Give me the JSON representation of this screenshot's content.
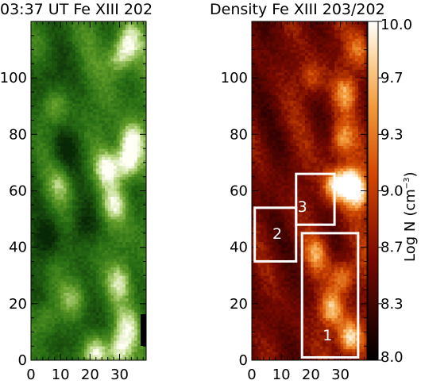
{
  "chart_data": [
    {
      "type": "heatmap",
      "title": "03:37 UT Fe XIII 202",
      "colormap": "green",
      "x_ticks": [
        "0",
        "10",
        "20",
        "30"
      ],
      "y_ticks": [
        "0",
        "20",
        "40",
        "60",
        "80",
        "100"
      ],
      "xlim": [
        0,
        39
      ],
      "ylim": [
        0,
        120
      ],
      "bright_patches": [
        {
          "x": 33,
          "y": 70,
          "level": 0.95
        },
        {
          "x": 34,
          "y": 78,
          "level": 0.85
        },
        {
          "x": 26,
          "y": 68,
          "level": 0.75
        },
        {
          "x": 30,
          "y": 107,
          "level": 0.7
        },
        {
          "x": 33,
          "y": 113,
          "level": 0.65
        },
        {
          "x": 28,
          "y": 55,
          "level": 0.6
        },
        {
          "x": 22,
          "y": 3,
          "level": 0.8
        },
        {
          "x": 30,
          "y": 4,
          "level": 0.75
        },
        {
          "x": 5,
          "y": 15,
          "level": 0.45
        },
        {
          "x": 15,
          "y": 22,
          "level": 0.4
        },
        {
          "x": 30,
          "y": 28,
          "level": 0.55
        },
        {
          "x": 10,
          "y": 62,
          "level": 0.4
        },
        {
          "x": 8,
          "y": 90,
          "level": 0.35
        },
        {
          "x": 33,
          "y": 12,
          "level": 0.5
        }
      ],
      "dark_patches": [
        {
          "x": 5,
          "y": 43,
          "level": 0.35
        },
        {
          "x": 18,
          "y": 48,
          "level": 0.3
        },
        {
          "x": 6,
          "y": 100,
          "level": 0.3
        },
        {
          "x": 12,
          "y": 75,
          "level": 0.3
        },
        {
          "x": 16,
          "y": 10,
          "level": 0.25
        }
      ]
    },
    {
      "type": "heatmap",
      "title": "Density Fe XIII 203/202",
      "colormap": "red-temperature",
      "x_ticks": [
        "0",
        "10",
        "20",
        "30"
      ],
      "y_ticks": [
        "0",
        "20",
        "40",
        "60",
        "80",
        "100"
      ],
      "xlim": [
        0,
        39
      ],
      "ylim": [
        0,
        120
      ],
      "colorbar": {
        "label": "Log N",
        "unit": "(cm",
        "unit_exp": "−3",
        "unit_close": ")",
        "range": [
          8.0,
          10.0
        ],
        "ticks": [
          "10.0",
          "9.7",
          "9.3",
          "9.0",
          "8.7",
          "8.3",
          "8.0"
        ]
      },
      "bright_patches": [
        {
          "x": 33,
          "y": 63,
          "level": 0.95
        },
        {
          "x": 28,
          "y": 62,
          "level": 0.8
        },
        {
          "x": 36,
          "y": 59,
          "level": 0.75
        },
        {
          "x": 33,
          "y": 8,
          "level": 0.9
        },
        {
          "x": 27,
          "y": 18,
          "level": 0.75
        },
        {
          "x": 31,
          "y": 30,
          "level": 0.65
        },
        {
          "x": 30,
          "y": 78,
          "level": 0.6
        },
        {
          "x": 32,
          "y": 95,
          "level": 0.55
        },
        {
          "x": 22,
          "y": 38,
          "level": 0.5
        },
        {
          "x": 20,
          "y": 100,
          "level": 0.45
        },
        {
          "x": 36,
          "y": 110,
          "level": 0.45
        }
      ],
      "regions": [
        {
          "label": "1",
          "x0": 17,
          "x1": 36,
          "y0": 1,
          "y1": 45
        },
        {
          "label": "2",
          "x0": 1,
          "x1": 15,
          "y0": 35,
          "y1": 54
        },
        {
          "label": "3",
          "x0": 15,
          "x1": 28,
          "y0": 48,
          "y1": 66
        }
      ]
    }
  ]
}
